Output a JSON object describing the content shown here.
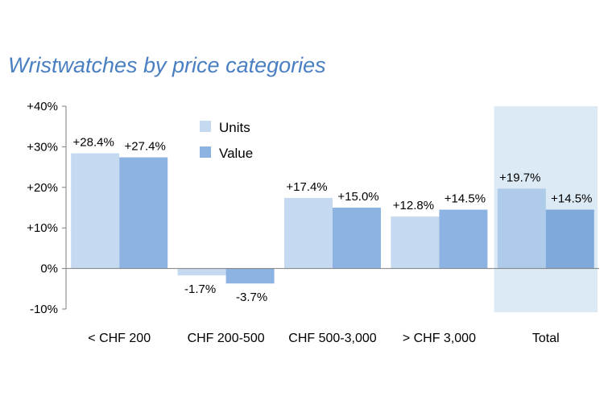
{
  "chart_data": {
    "type": "bar",
    "title": "Wristwatches by price categories",
    "xlabel": "",
    "ylabel": "",
    "categories": [
      "< CHF 200",
      "CHF 200-500",
      "CHF 500-3,000",
      "> CHF 3,000",
      "Total"
    ],
    "series": [
      {
        "name": "Units",
        "values": [
          28.4,
          -1.7,
          17.4,
          12.8,
          19.7
        ],
        "labels": [
          "+28.4%",
          "-1.7%",
          "+17.4%",
          "+12.8%",
          "+19.7%"
        ],
        "color": "#c5d9f1"
      },
      {
        "name": "Value",
        "values": [
          27.4,
          -3.7,
          15.0,
          14.5,
          14.5
        ],
        "labels": [
          "+27.4%",
          "-3.7%",
          "+15.0%",
          "+14.5%",
          "+14.5%"
        ],
        "color": "#8db3e2"
      }
    ],
    "ylim": [
      -10,
      40
    ],
    "yticks": [
      {
        "value": 40,
        "label": "+40%"
      },
      {
        "value": 30,
        "label": "+30%"
      },
      {
        "value": 20,
        "label": "+20%"
      },
      {
        "value": 10,
        "label": "+10%"
      },
      {
        "value": 0,
        "label": "0%"
      },
      {
        "value": -10,
        "label": "-10%"
      }
    ],
    "highlight_category": "Total",
    "highlight_color": "#dceaf5",
    "highlight_bar_colors": [
      "#aecbea",
      "#7fa9da"
    ],
    "legend_position": "top-center",
    "grid": false,
    "title_color": "#4a7fc1"
  }
}
